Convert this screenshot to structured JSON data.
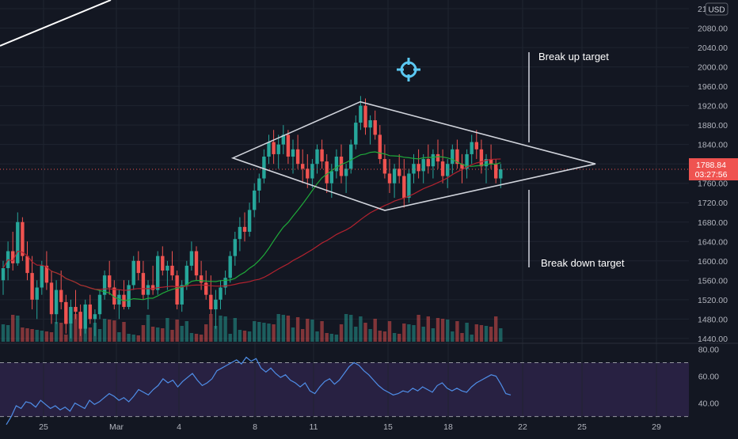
{
  "currency_label": "USD",
  "price_badge": {
    "price": "1788.84",
    "countdown": "03:27:56"
  },
  "annotations": {
    "break_up": "Break up target",
    "break_down": "Break down target"
  },
  "crosshair_icon": "crosshair-target-icon",
  "colors": {
    "background": "#131722",
    "grid": "#1f2430",
    "up_candle": "#26a69a",
    "down_candle": "#ef5350",
    "ma_fast": "#1faa3a",
    "ma_slow": "#b2222f",
    "pattern_lines": "#d1d4dc",
    "rsi_line": "#4f8ee8",
    "rsi_band": "#3b2a5c",
    "price_badge": "#ef5350",
    "crosshair_icon": "#5bc8f2"
  },
  "chart_data": [
    {
      "type": "candlestick",
      "title": "",
      "y_axis_ticks": [
        1440,
        1480,
        1520,
        1560,
        1600,
        1640,
        1680,
        1720,
        1760,
        1800,
        1840,
        1880,
        1920,
        1960,
        2000,
        2040,
        2080,
        2120
      ],
      "ylim": [
        1430,
        2138
      ],
      "x_tick_labels": [
        "25",
        "Mar",
        "4",
        "8",
        "11",
        "15",
        "18",
        "22",
        "25",
        "29"
      ],
      "current_price": 1788.84,
      "pattern": "diamond",
      "diamond_vertices": [
        {
          "date": "Mar 6",
          "price": 1812
        },
        {
          "date": "Mar 13",
          "price": 1928
        },
        {
          "date": "Mar 25",
          "price": 1800
        },
        {
          "date": "Mar 14",
          "price": 1704
        }
      ],
      "candles": [
        [
          1560,
          1600,
          1530,
          1585
        ],
        [
          1585,
          1640,
          1560,
          1620
        ],
        [
          1620,
          1660,
          1580,
          1595
        ],
        [
          1595,
          1700,
          1590,
          1680
        ],
        [
          1680,
          1690,
          1600,
          1610
        ],
        [
          1610,
          1640,
          1560,
          1575
        ],
        [
          1575,
          1610,
          1500,
          1520
        ],
        [
          1520,
          1560,
          1480,
          1545
        ],
        [
          1545,
          1600,
          1530,
          1590
        ],
        [
          1590,
          1620,
          1540,
          1555
        ],
        [
          1555,
          1580,
          1470,
          1490
        ],
        [
          1490,
          1560,
          1470,
          1540
        ],
        [
          1540,
          1580,
          1500,
          1515
        ],
        [
          1515,
          1530,
          1450,
          1470
        ],
        [
          1470,
          1520,
          1440,
          1505
        ],
        [
          1505,
          1540,
          1480,
          1495
        ],
        [
          1495,
          1510,
          1445,
          1460
        ],
        [
          1460,
          1520,
          1450,
          1510
        ],
        [
          1510,
          1530,
          1470,
          1480
        ],
        [
          1480,
          1500,
          1445,
          1490
        ],
        [
          1490,
          1540,
          1480,
          1530
        ],
        [
          1530,
          1580,
          1520,
          1570
        ],
        [
          1570,
          1600,
          1530,
          1545
        ],
        [
          1545,
          1560,
          1500,
          1510
        ],
        [
          1510,
          1540,
          1480,
          1530
        ],
        [
          1530,
          1560,
          1500,
          1505
        ],
        [
          1505,
          1560,
          1500,
          1550
        ],
        [
          1550,
          1610,
          1540,
          1600
        ],
        [
          1600,
          1620,
          1560,
          1575
        ],
        [
          1575,
          1600,
          1520,
          1530
        ],
        [
          1530,
          1560,
          1500,
          1550
        ],
        [
          1550,
          1590,
          1530,
          1540
        ],
        [
          1540,
          1620,
          1530,
          1610
        ],
        [
          1610,
          1630,
          1570,
          1580
        ],
        [
          1580,
          1600,
          1540,
          1590
        ],
        [
          1590,
          1620,
          1560,
          1570
        ],
        [
          1570,
          1580,
          1500,
          1510
        ],
        [
          1510,
          1560,
          1495,
          1550
        ],
        [
          1550,
          1600,
          1540,
          1590
        ],
        [
          1590,
          1640,
          1580,
          1620
        ],
        [
          1620,
          1630,
          1560,
          1570
        ],
        [
          1570,
          1600,
          1540,
          1555
        ],
        [
          1555,
          1580,
          1520,
          1530
        ],
        [
          1530,
          1570,
          1490,
          1500
        ],
        [
          1500,
          1540,
          1460,
          1520
        ],
        [
          1520,
          1560,
          1500,
          1545
        ],
        [
          1545,
          1580,
          1530,
          1565
        ],
        [
          1565,
          1620,
          1555,
          1610
        ],
        [
          1610,
          1660,
          1590,
          1645
        ],
        [
          1645,
          1690,
          1620,
          1670
        ],
        [
          1670,
          1700,
          1640,
          1660
        ],
        [
          1660,
          1720,
          1650,
          1705
        ],
        [
          1705,
          1760,
          1690,
          1745
        ],
        [
          1745,
          1780,
          1720,
          1770
        ],
        [
          1770,
          1830,
          1760,
          1815
        ],
        [
          1815,
          1860,
          1800,
          1845
        ],
        [
          1845,
          1870,
          1800,
          1820
        ],
        [
          1820,
          1860,
          1790,
          1840
        ],
        [
          1840,
          1880,
          1820,
          1860
        ],
        [
          1860,
          1870,
          1800,
          1815
        ],
        [
          1815,
          1850,
          1780,
          1830
        ],
        [
          1830,
          1860,
          1790,
          1800
        ],
        [
          1800,
          1830,
          1760,
          1790
        ],
        [
          1790,
          1820,
          1750,
          1770
        ],
        [
          1770,
          1810,
          1750,
          1800
        ],
        [
          1800,
          1840,
          1780,
          1830
        ],
        [
          1830,
          1850,
          1790,
          1805
        ],
        [
          1805,
          1820,
          1740,
          1760
        ],
        [
          1760,
          1800,
          1730,
          1785
        ],
        [
          1785,
          1830,
          1770,
          1815
        ],
        [
          1815,
          1840,
          1760,
          1775
        ],
        [
          1775,
          1800,
          1740,
          1790
        ],
        [
          1790,
          1850,
          1780,
          1840
        ],
        [
          1840,
          1900,
          1830,
          1885
        ],
        [
          1885,
          1940,
          1870,
          1920
        ],
        [
          1920,
          1935,
          1860,
          1875
        ],
        [
          1875,
          1900,
          1840,
          1890
        ],
        [
          1890,
          1910,
          1850,
          1860
        ],
        [
          1860,
          1880,
          1800,
          1810
        ],
        [
          1810,
          1840,
          1770,
          1780
        ],
        [
          1780,
          1810,
          1740,
          1760
        ],
        [
          1760,
          1800,
          1730,
          1790
        ],
        [
          1790,
          1820,
          1760,
          1775
        ],
        [
          1775,
          1810,
          1710,
          1730
        ],
        [
          1730,
          1790,
          1720,
          1780
        ],
        [
          1780,
          1820,
          1760,
          1800
        ],
        [
          1800,
          1830,
          1770,
          1785
        ],
        [
          1785,
          1820,
          1760,
          1810
        ],
        [
          1810,
          1840,
          1780,
          1795
        ],
        [
          1795,
          1830,
          1770,
          1820
        ],
        [
          1820,
          1850,
          1790,
          1805
        ],
        [
          1805,
          1830,
          1760,
          1775
        ],
        [
          1775,
          1810,
          1750,
          1800
        ],
        [
          1800,
          1840,
          1780,
          1830
        ],
        [
          1830,
          1850,
          1790,
          1800
        ],
        [
          1800,
          1820,
          1760,
          1790
        ],
        [
          1790,
          1830,
          1770,
          1820
        ],
        [
          1820,
          1860,
          1800,
          1845
        ],
        [
          1845,
          1870,
          1810,
          1830
        ],
        [
          1830,
          1850,
          1780,
          1795
        ],
        [
          1795,
          1820,
          1760,
          1810
        ],
        [
          1810,
          1840,
          1790,
          1800
        ],
        [
          1800,
          1810,
          1760,
          1770
        ],
        [
          1770,
          1800,
          1750,
          1789
        ]
      ]
    },
    {
      "type": "line",
      "title": "",
      "indicator": "RSI",
      "y_axis_ticks": [
        40,
        60,
        80
      ],
      "ylim": [
        28,
        82
      ],
      "upper_band": 70,
      "lower_band": 30,
      "values": [
        24,
        30,
        38,
        36,
        41,
        40,
        37,
        42,
        39,
        36,
        38,
        35,
        37,
        34,
        40,
        38,
        36,
        42,
        39,
        41,
        44,
        47,
        45,
        42,
        44,
        41,
        45,
        50,
        48,
        46,
        50,
        53,
        58,
        55,
        57,
        52,
        56,
        59,
        62,
        57,
        53,
        55,
        58,
        64,
        66,
        68,
        70,
        72,
        69,
        74,
        71,
        73,
        66,
        63,
        66,
        62,
        59,
        61,
        57,
        55,
        52,
        55,
        49,
        47,
        52,
        56,
        58,
        54,
        57,
        62,
        67,
        70,
        68,
        64,
        61,
        57,
        53,
        50,
        48,
        46,
        47,
        49,
        48,
        51,
        49,
        52,
        50,
        48,
        53,
        55,
        51,
        49,
        51,
        49,
        48,
        52,
        55,
        57,
        59,
        61,
        60,
        54,
        47,
        46
      ]
    }
  ]
}
